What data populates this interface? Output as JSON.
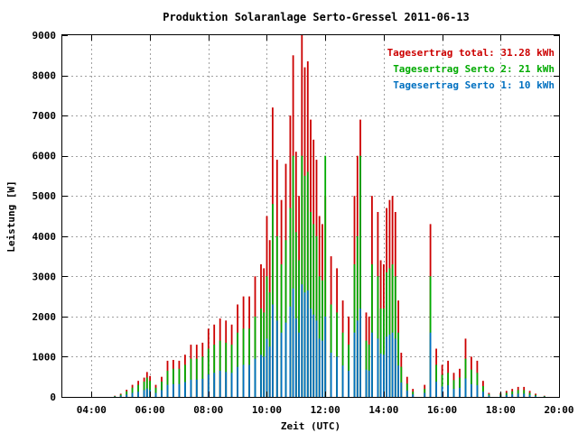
{
  "chart_data": {
    "type": "bar",
    "title": "Produktion Solaranlage Serto-Gressel 2011-06-13",
    "xlabel": "Zeit (UTC)",
    "ylabel": "Leistung [W]",
    "xlim": [
      3.0,
      20.0
    ],
    "ylim": [
      0,
      9000
    ],
    "x_ticks": [
      4,
      6,
      8,
      10,
      12,
      14,
      16,
      18,
      20
    ],
    "x_tick_labels": [
      "04:00",
      "06:00",
      "08:00",
      "10:00",
      "12:00",
      "14:00",
      "16:00",
      "18:00",
      "20:00"
    ],
    "y_ticks": [
      0,
      1000,
      2000,
      3000,
      4000,
      5000,
      6000,
      7000,
      8000,
      9000
    ],
    "y_tick_labels": [
      "0",
      "1000",
      "2000",
      "3000",
      "4000",
      "5000",
      "6000",
      "7000",
      "8000",
      "9000"
    ],
    "grid": true,
    "legend_position": "top-right",
    "legend": [
      {
        "label": "Tagesertrag total: 31.28 kWh",
        "color": "#cc0000"
      },
      {
        "label": "Tagesertrag Serto 2: 21 kWh",
        "color": "#00aa00"
      },
      {
        "label": "Tagesertrag Serto 1: 10 kWh",
        "color": "#0070c0"
      }
    ],
    "x_unit": "hour (UTC)",
    "series": [
      {
        "name": "Tagesertrag total: 31.28 kWh",
        "color": "#cc0000",
        "points": [
          [
            4.8,
            30
          ],
          [
            5.0,
            80
          ],
          [
            5.2,
            180
          ],
          [
            5.4,
            300
          ],
          [
            5.6,
            400
          ],
          [
            5.8,
            480
          ],
          [
            5.9,
            620
          ],
          [
            6.0,
            520
          ],
          [
            6.2,
            300
          ],
          [
            6.4,
            500
          ],
          [
            6.6,
            900
          ],
          [
            6.8,
            920
          ],
          [
            7.0,
            900
          ],
          [
            7.2,
            1050
          ],
          [
            7.4,
            1300
          ],
          [
            7.6,
            1300
          ],
          [
            7.8,
            1350
          ],
          [
            8.0,
            1700
          ],
          [
            8.2,
            1800
          ],
          [
            8.4,
            1950
          ],
          [
            8.6,
            1900
          ],
          [
            8.8,
            1800
          ],
          [
            9.0,
            2300
          ],
          [
            9.2,
            2500
          ],
          [
            9.4,
            2500
          ],
          [
            9.6,
            3000
          ],
          [
            9.8,
            3300
          ],
          [
            9.9,
            3200
          ],
          [
            10.0,
            4500
          ],
          [
            10.1,
            3900
          ],
          [
            10.2,
            7200
          ],
          [
            10.35,
            5900
          ],
          [
            10.5,
            4900
          ],
          [
            10.65,
            5800
          ],
          [
            10.8,
            7000
          ],
          [
            10.9,
            8500
          ],
          [
            11.0,
            6100
          ],
          [
            11.1,
            5000
          ],
          [
            11.2,
            9000
          ],
          [
            11.3,
            8200
          ],
          [
            11.4,
            8350
          ],
          [
            11.5,
            6900
          ],
          [
            11.6,
            6400
          ],
          [
            11.7,
            5900
          ],
          [
            11.8,
            4500
          ],
          [
            11.9,
            4300
          ],
          [
            12.0,
            5000
          ],
          [
            12.2,
            3500
          ],
          [
            12.4,
            3200
          ],
          [
            12.6,
            2400
          ],
          [
            12.8,
            2000
          ],
          [
            13.0,
            5000
          ],
          [
            13.1,
            6000
          ],
          [
            13.2,
            6900
          ],
          [
            13.4,
            2100
          ],
          [
            13.5,
            2000
          ],
          [
            13.6,
            5000
          ],
          [
            13.8,
            4600
          ],
          [
            13.9,
            3400
          ],
          [
            14.0,
            3300
          ],
          [
            14.1,
            4700
          ],
          [
            14.2,
            4900
          ],
          [
            14.3,
            5000
          ],
          [
            14.4,
            4600
          ],
          [
            14.5,
            2400
          ],
          [
            14.6,
            1100
          ],
          [
            14.8,
            500
          ],
          [
            15.0,
            200
          ],
          [
            15.4,
            300
          ],
          [
            15.6,
            4300
          ],
          [
            15.8,
            1200
          ],
          [
            16.0,
            800
          ],
          [
            16.2,
            900
          ],
          [
            16.4,
            600
          ],
          [
            16.6,
            700
          ],
          [
            16.8,
            1450
          ],
          [
            17.0,
            1000
          ],
          [
            17.2,
            900
          ],
          [
            17.4,
            400
          ],
          [
            17.6,
            100
          ],
          [
            18.0,
            100
          ],
          [
            18.2,
            150
          ],
          [
            18.4,
            200
          ],
          [
            18.6,
            250
          ],
          [
            18.8,
            250
          ],
          [
            19.0,
            150
          ],
          [
            19.2,
            80
          ],
          [
            19.5,
            30
          ]
        ]
      },
      {
        "name": "Tagesertrag Serto 2: 21 kWh",
        "color": "#00aa00",
        "points": [
          [
            4.8,
            20
          ],
          [
            5.0,
            60
          ],
          [
            5.2,
            140
          ],
          [
            5.4,
            230
          ],
          [
            5.6,
            300
          ],
          [
            5.8,
            380
          ],
          [
            5.9,
            480
          ],
          [
            6.0,
            400
          ],
          [
            6.2,
            230
          ],
          [
            6.4,
            380
          ],
          [
            6.6,
            650
          ],
          [
            6.8,
            700
          ],
          [
            7.0,
            700
          ],
          [
            7.2,
            800
          ],
          [
            7.4,
            950
          ],
          [
            7.6,
            950
          ],
          [
            7.8,
            1000
          ],
          [
            8.0,
            1200
          ],
          [
            8.2,
            1300
          ],
          [
            8.4,
            1400
          ],
          [
            8.6,
            1350
          ],
          [
            8.8,
            1300
          ],
          [
            9.0,
            1600
          ],
          [
            9.2,
            1700
          ],
          [
            9.4,
            1700
          ],
          [
            9.6,
            2000
          ],
          [
            9.8,
            2200
          ],
          [
            9.9,
            2100
          ],
          [
            10.0,
            3000
          ],
          [
            10.1,
            2600
          ],
          [
            10.2,
            4800
          ],
          [
            10.35,
            4000
          ],
          [
            10.5,
            3300
          ],
          [
            10.65,
            3900
          ],
          [
            10.8,
            4700
          ],
          [
            10.9,
            6000
          ],
          [
            11.0,
            4100
          ],
          [
            11.1,
            3400
          ],
          [
            11.2,
            6000
          ],
          [
            11.3,
            5500
          ],
          [
            11.4,
            5600
          ],
          [
            11.5,
            4600
          ],
          [
            11.6,
            4300
          ],
          [
            11.7,
            4000
          ],
          [
            11.8,
            3000
          ],
          [
            11.9,
            2900
          ],
          [
            12.0,
            6000
          ],
          [
            12.2,
            2300
          ],
          [
            12.4,
            2100
          ],
          [
            12.6,
            1600
          ],
          [
            12.8,
            1300
          ],
          [
            13.0,
            3300
          ],
          [
            13.1,
            4000
          ],
          [
            13.2,
            6000
          ],
          [
            13.4,
            1400
          ],
          [
            13.5,
            1300
          ],
          [
            13.6,
            3300
          ],
          [
            13.8,
            3000
          ],
          [
            13.9,
            2200
          ],
          [
            14.0,
            2200
          ],
          [
            14.1,
            3100
          ],
          [
            14.2,
            3200
          ],
          [
            14.3,
            3300
          ],
          [
            14.4,
            3000
          ],
          [
            14.5,
            1600
          ],
          [
            14.6,
            750
          ],
          [
            14.8,
            330
          ],
          [
            15.0,
            130
          ],
          [
            15.4,
            200
          ],
          [
            15.6,
            3000
          ],
          [
            15.8,
            800
          ],
          [
            16.0,
            550
          ],
          [
            16.2,
            600
          ],
          [
            16.4,
            420
          ],
          [
            16.6,
            480
          ],
          [
            16.8,
            950
          ],
          [
            17.0,
            680
          ],
          [
            17.2,
            600
          ],
          [
            17.4,
            270
          ],
          [
            17.6,
            70
          ],
          [
            18.0,
            70
          ],
          [
            18.2,
            100
          ],
          [
            18.4,
            140
          ],
          [
            18.6,
            170
          ],
          [
            18.8,
            170
          ],
          [
            19.0,
            100
          ],
          [
            19.2,
            50
          ],
          [
            19.5,
            20
          ]
        ]
      },
      {
        "name": "Tagesertrag Serto 1: 10 kWh",
        "color": "#0070c0",
        "points": [
          [
            4.8,
            10
          ],
          [
            5.0,
            30
          ],
          [
            5.2,
            60
          ],
          [
            5.4,
            100
          ],
          [
            5.6,
            130
          ],
          [
            5.8,
            170
          ],
          [
            5.9,
            210
          ],
          [
            6.0,
            170
          ],
          [
            6.2,
            100
          ],
          [
            6.4,
            170
          ],
          [
            6.6,
            300
          ],
          [
            6.8,
            320
          ],
          [
            7.0,
            320
          ],
          [
            7.2,
            370
          ],
          [
            7.4,
            430
          ],
          [
            7.6,
            430
          ],
          [
            7.8,
            450
          ],
          [
            8.0,
            560
          ],
          [
            8.2,
            600
          ],
          [
            8.4,
            650
          ],
          [
            8.6,
            620
          ],
          [
            8.8,
            600
          ],
          [
            9.0,
            750
          ],
          [
            9.2,
            800
          ],
          [
            9.4,
            800
          ],
          [
            9.6,
            950
          ],
          [
            9.8,
            1050
          ],
          [
            9.9,
            1000
          ],
          [
            10.0,
            1450
          ],
          [
            10.1,
            1250
          ],
          [
            10.2,
            2300
          ],
          [
            10.35,
            1900
          ],
          [
            10.5,
            1600
          ],
          [
            10.65,
            1850
          ],
          [
            10.8,
            2250
          ],
          [
            10.9,
            2700
          ],
          [
            11.0,
            1950
          ],
          [
            11.1,
            1600
          ],
          [
            11.2,
            2800
          ],
          [
            11.3,
            2600
          ],
          [
            11.4,
            2650
          ],
          [
            11.5,
            2200
          ],
          [
            11.6,
            2050
          ],
          [
            11.7,
            1900
          ],
          [
            11.8,
            1450
          ],
          [
            11.9,
            1400
          ],
          [
            12.0,
            2000
          ],
          [
            12.2,
            1100
          ],
          [
            12.4,
            1000
          ],
          [
            12.6,
            780
          ],
          [
            12.8,
            650
          ],
          [
            13.0,
            1600
          ],
          [
            13.1,
            1900
          ],
          [
            13.2,
            2200
          ],
          [
            13.4,
            680
          ],
          [
            13.5,
            650
          ],
          [
            13.6,
            1600
          ],
          [
            13.8,
            1450
          ],
          [
            13.9,
            1080
          ],
          [
            14.0,
            1050
          ],
          [
            14.1,
            1500
          ],
          [
            14.2,
            1550
          ],
          [
            14.3,
            1600
          ],
          [
            14.4,
            1450
          ],
          [
            14.5,
            780
          ],
          [
            14.6,
            360
          ],
          [
            14.8,
            160
          ],
          [
            15.0,
            65
          ],
          [
            15.4,
            100
          ],
          [
            15.6,
            1600
          ],
          [
            15.8,
            380
          ],
          [
            16.0,
            260
          ],
          [
            16.2,
            290
          ],
          [
            16.4,
            200
          ],
          [
            16.6,
            230
          ],
          [
            16.8,
            460
          ],
          [
            17.0,
            320
          ],
          [
            17.2,
            290
          ],
          [
            17.4,
            130
          ],
          [
            17.6,
            35
          ],
          [
            18.0,
            35
          ],
          [
            18.2,
            50
          ],
          [
            18.4,
            65
          ],
          [
            18.6,
            80
          ],
          [
            18.8,
            80
          ],
          [
            19.0,
            50
          ],
          [
            19.2,
            25
          ],
          [
            19.5,
            10
          ]
        ]
      }
    ]
  }
}
